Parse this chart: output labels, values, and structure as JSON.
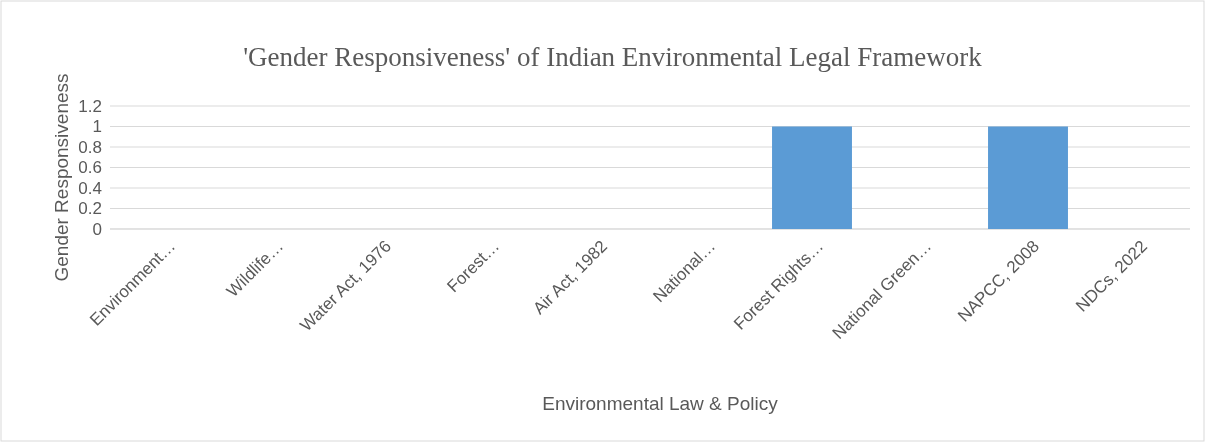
{
  "chart_data": {
    "type": "bar",
    "title": "'Gender Responsiveness' of Indian Environmental Legal Framework",
    "xlabel": "Environmental Law & Policy",
    "ylabel": "Gender Responsiveness",
    "categories": [
      "Environment…",
      "Wildlife…",
      "Water Act, 1976",
      "Forest…",
      "Air Act, 1982",
      "National…",
      "Forest Rights…",
      "National Green…",
      "NAPCC, 2008",
      "NDCs, 2022"
    ],
    "values": [
      0,
      0,
      0,
      0,
      0,
      0,
      1,
      0,
      1,
      0
    ],
    "color": "#5b9bd5",
    "ylim": [
      0,
      1.2
    ],
    "yticks": [
      0,
      {
        "value": 0.2,
        "label": "0.2"
      },
      {
        "value": 0.4,
        "label": "0.4"
      },
      {
        "value": 0.6,
        "label": "0.6"
      },
      {
        "value": 0.8,
        "label": "0.8"
      },
      1,
      {
        "value": 1.2,
        "label": "1.2"
      }
    ],
    "grid": "y"
  }
}
